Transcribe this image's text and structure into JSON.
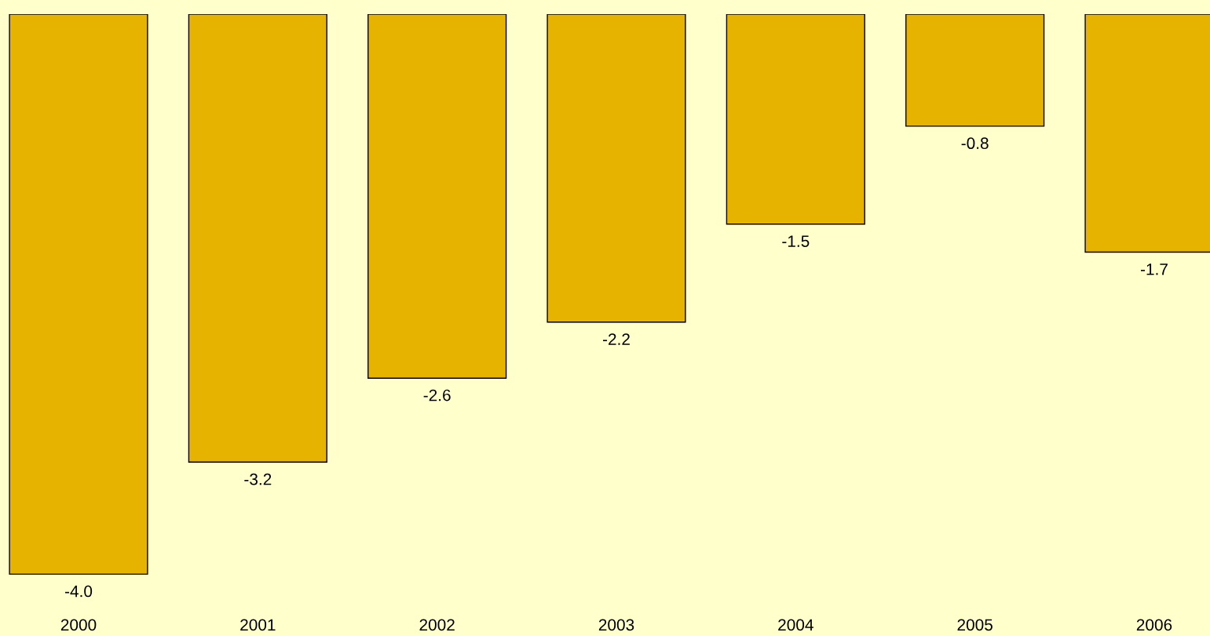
{
  "chart_data": {
    "type": "bar",
    "categories": [
      "2000",
      "2001",
      "2002",
      "2003",
      "2004",
      "2005",
      "2006"
    ],
    "values": [
      -4.0,
      -3.2,
      -2.6,
      -2.2,
      -1.5,
      -0.8,
      -1.7
    ],
    "value_labels": [
      "-4.0",
      "-3.2",
      "-2.6",
      "-2.2",
      "-1.5",
      "-0.8",
      "-1.7"
    ],
    "color": "#e6b400"
  }
}
